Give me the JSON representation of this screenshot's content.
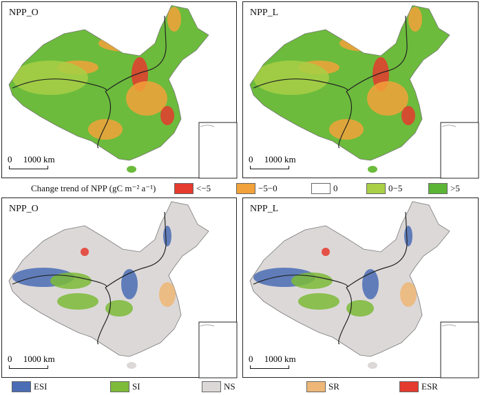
{
  "panels": [
    {
      "title": "NPP_O",
      "scale": "0     1000 km",
      "mode": "trend"
    },
    {
      "title": "NPP_L",
      "scale": "0     1000 km",
      "mode": "trend"
    },
    {
      "title": "NPP_O",
      "scale": "0     1000 km",
      "mode": "sig"
    },
    {
      "title": "NPP_L",
      "scale": "0     1000 km",
      "mode": "sig"
    }
  ],
  "legend_trend": {
    "title": "Change trend of NPP (gC m⁻² a⁻¹)",
    "items": [
      {
        "label": "<−5",
        "color": "#e53a2e"
      },
      {
        "label": "−5−0",
        "color": "#f2a23a"
      },
      {
        "label": "0",
        "color": "#ffffff"
      },
      {
        "label": "0−5",
        "color": "#a8cf45"
      },
      {
        "label": ">5",
        "color": "#5cb535"
      }
    ]
  },
  "legend_sig": {
    "items": [
      {
        "label": "ESI",
        "color": "#4a6db5"
      },
      {
        "label": "SI",
        "color": "#7dbb38"
      },
      {
        "label": "NS",
        "color": "#dcd8d8"
      },
      {
        "label": "SR",
        "color": "#eeb777"
      },
      {
        "label": "ESR",
        "color": "#e53a2e"
      }
    ]
  }
}
